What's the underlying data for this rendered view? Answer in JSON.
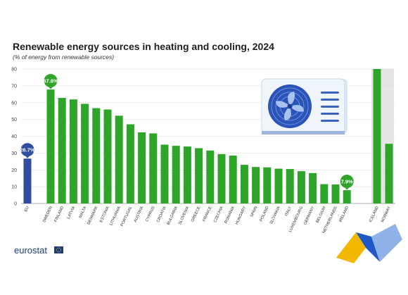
{
  "chart_data": {
    "type": "bar",
    "title": "Renewable energy sources in heating and cooling, 2024",
    "subtitle": "(% of energy from renewable sources)",
    "ylim": [
      0,
      80
    ],
    "yticks": [
      0,
      10,
      20,
      30,
      40,
      50,
      60,
      70,
      80
    ],
    "grid": true,
    "categories": [
      "EU",
      "SWEDEN",
      "FINLAND",
      "LATVIA",
      "MALTA",
      "DENMARK",
      "ESTONIA",
      "LITHUANIA",
      "PORTUGAL",
      "AUSTRIA",
      "CYPRUS",
      "CROATIA",
      "BULGARIA",
      "SLOVENIA",
      "GREECE",
      "FRANCE",
      "CZECHIA",
      "ROMANIA",
      "HUNGARY",
      "SPAIN",
      "POLAND",
      "SLOVAKIA",
      "ITALY",
      "LUXEMBOURG",
      "GERMANY",
      "BELGIUM",
      "NETHERLANDS",
      "IRELAND",
      "ICELAND",
      "NORWAY"
    ],
    "values": [
      26.7,
      67.8,
      62.8,
      61.9,
      59.3,
      56.7,
      55.9,
      52.2,
      47.1,
      42.3,
      41.7,
      35.0,
      34.3,
      33.9,
      32.9,
      31.5,
      29.4,
      28.5,
      23.0,
      21.7,
      21.5,
      20.7,
      20.5,
      19.2,
      18.1,
      11.5,
      11.3,
      7.9,
      80.0,
      35.5
    ],
    "groups": [
      "eu",
      "member",
      "member",
      "member",
      "member",
      "member",
      "member",
      "member",
      "member",
      "member",
      "member",
      "member",
      "member",
      "member",
      "member",
      "member",
      "member",
      "member",
      "member",
      "member",
      "member",
      "member",
      "member",
      "member",
      "member",
      "member",
      "member",
      "member",
      "efta",
      "efta"
    ],
    "highlights": [
      {
        "category": "EU",
        "label": "26.7%"
      },
      {
        "category": "SWEDEN",
        "label": "67.8%"
      },
      {
        "category": "IRELAND",
        "label": "7.9%"
      }
    ],
    "colors": {
      "eu": "#2e4fa0",
      "member": "#2ea52a",
      "efta_band": "#e6e6e6",
      "grid": "#d9d9d9"
    }
  },
  "icon": "air-conditioner-icon",
  "logo": {
    "text": "eurostat"
  }
}
